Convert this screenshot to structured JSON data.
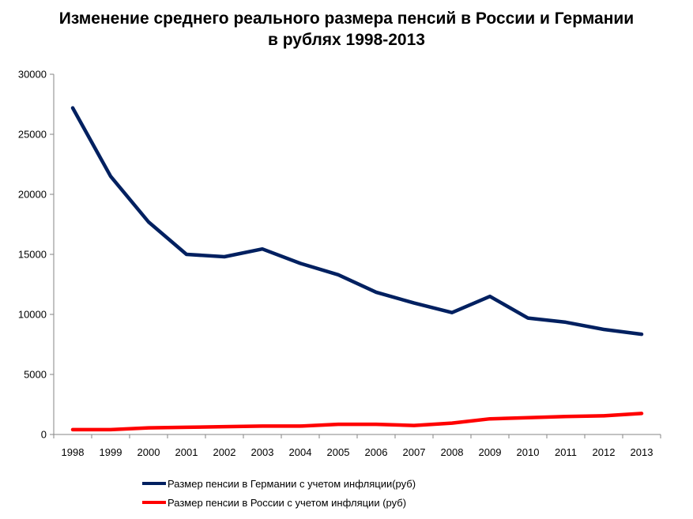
{
  "chart_data": {
    "type": "line",
    "title_line1": "Изменение среднего реального размера пенсий в России и Германии",
    "title_line2": "в рублях 1998-2013",
    "x": [
      "1998",
      "1999",
      "2000",
      "2001",
      "2002",
      "2003",
      "2004",
      "2005",
      "2006",
      "2007",
      "2008",
      "2009",
      "2010",
      "2011",
      "2012",
      "2013"
    ],
    "yticks": [
      "0",
      "5000",
      "10000",
      "15000",
      "20000",
      "25000",
      "30000"
    ],
    "ylim": [
      0,
      30000
    ],
    "grid": false,
    "legend_position": "bottom",
    "series": [
      {
        "name": "Размер пенсии в Германии с учетом инфляции(руб)",
        "color": "#002060",
        "values": [
          27200,
          21500,
          17700,
          15000,
          14800,
          15450,
          14250,
          13300,
          11850,
          10950,
          10150,
          11500,
          9700,
          9350,
          8750,
          8350
        ]
      },
      {
        "name": "Размер пенсии в России с учетом инфляции (руб)",
        "color": "#ff0000",
        "values": [
          400,
          400,
          550,
          600,
          650,
          700,
          700,
          850,
          850,
          750,
          950,
          1300,
          1400,
          1500,
          1550,
          1750
        ]
      }
    ]
  }
}
